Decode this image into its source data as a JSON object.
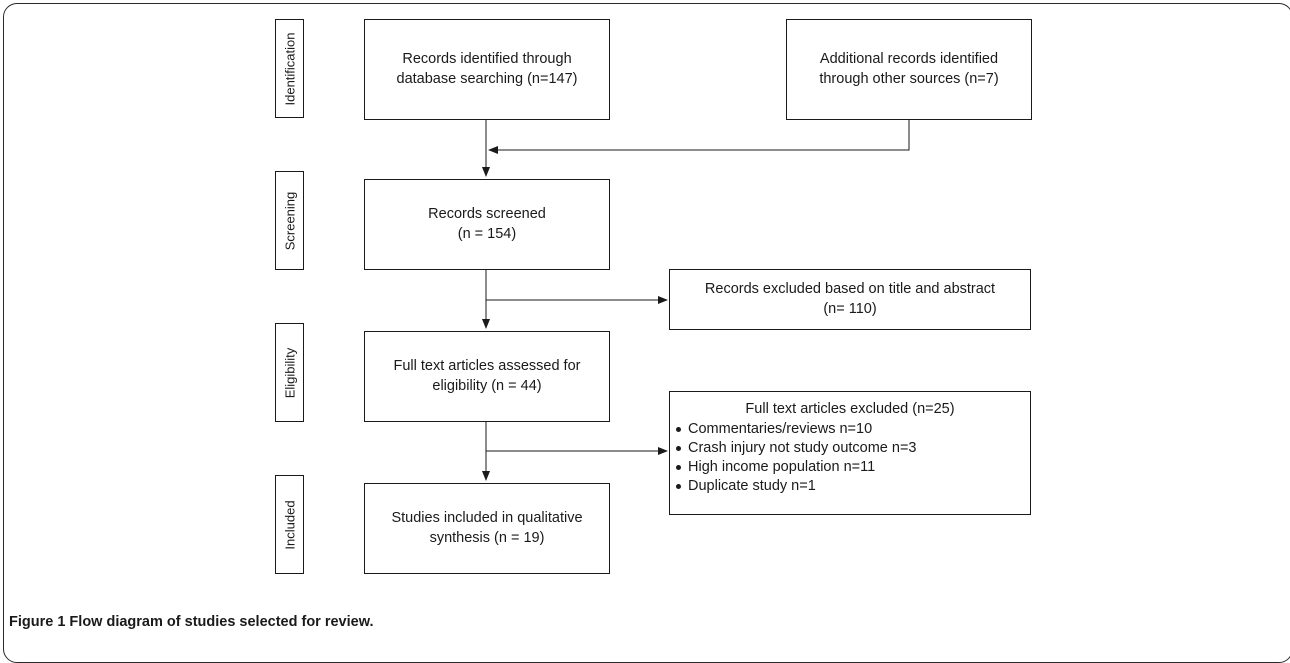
{
  "stages": [
    "Identification",
    "Screening",
    "Eligibility",
    "Included"
  ],
  "boxes": {
    "db_search": [
      "Records identified through",
      "database searching (n=147)"
    ],
    "other_sources": [
      "Additional records identified",
      "through other sources (n=7)"
    ],
    "screened": [
      "Records screened",
      "(n = 154)"
    ],
    "excluded_title": [
      "Records excluded based on title and abstract",
      "(n= 110)"
    ],
    "fulltext": [
      "Full text articles assessed for",
      "eligibility (n = 44)"
    ],
    "excluded_full": {
      "title": "Full text articles excluded (n=25)",
      "items": [
        "Commentaries/reviews n=10",
        "Crash injury not study outcome n=3",
        "High income population n=11",
        "Duplicate study n=1"
      ]
    },
    "included": [
      "Studies included in qualitative",
      "synthesis (n = 19)"
    ]
  },
  "caption": "Figure 1 Flow diagram of studies selected for review."
}
